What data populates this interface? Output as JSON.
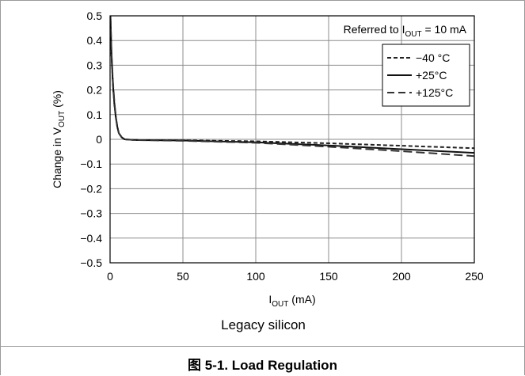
{
  "figure": {
    "subtitle": "Legacy silicon",
    "caption": "图 5-1. Load Regulation"
  },
  "chart_data": {
    "type": "line",
    "xlabel": {
      "main": "I",
      "sub": "OUT",
      "rest": " (mA)"
    },
    "ylabel": {
      "main": "Change in V",
      "sub": "OUT",
      "rest": " (%)"
    },
    "xlim": [
      0,
      250
    ],
    "ylim": [
      -0.5,
      0.5
    ],
    "xticks": [
      0,
      50,
      100,
      150,
      200,
      250
    ],
    "xtick_labels": [
      "0",
      "50",
      "100",
      "150",
      "200",
      "250"
    ],
    "yticks": [
      0.5,
      0.4,
      0.3,
      0.2,
      0.1,
      0,
      -0.1,
      -0.2,
      -0.3,
      -0.4,
      -0.5
    ],
    "ytick_labels": [
      "0.5",
      "0.4",
      "0.3",
      "0.2",
      "0.1",
      "0",
      "−0.1",
      "−0.2",
      "−0.3",
      "−0.4",
      "−0.5"
    ],
    "grid": true,
    "legend_position": "top-right",
    "annotation": {
      "prefix": "Referred to I",
      "sub": "OUT",
      "suffix": " = 10 mA"
    },
    "series": [
      {
        "name": "−40 °C",
        "style": "short-dash",
        "color": "#222222",
        "x": [
          0.3,
          1,
          2,
          3,
          4,
          5,
          6,
          8,
          10,
          15,
          20,
          50,
          100,
          150,
          200,
          250
        ],
        "y": [
          0.48,
          0.33,
          0.22,
          0.14,
          0.09,
          0.05,
          0.025,
          0.008,
          0.0,
          -0.002,
          -0.003,
          -0.004,
          -0.008,
          -0.016,
          -0.026,
          -0.036
        ]
      },
      {
        "name": "+25°C",
        "style": "solid",
        "color": "#111111",
        "x": [
          0.3,
          1,
          2,
          3,
          4,
          5,
          6,
          8,
          10,
          15,
          20,
          50,
          100,
          150,
          200,
          250
        ],
        "y": [
          0.49,
          0.34,
          0.22,
          0.14,
          0.085,
          0.05,
          0.025,
          0.008,
          0.0,
          -0.002,
          -0.003,
          -0.005,
          -0.012,
          -0.025,
          -0.04,
          -0.055
        ]
      },
      {
        "name": "+125°C",
        "style": "long-dash",
        "color": "#333333",
        "x": [
          0.3,
          1,
          2,
          3,
          4,
          5,
          6,
          8,
          10,
          15,
          20,
          50,
          100,
          150,
          200,
          250
        ],
        "y": [
          0.5,
          0.35,
          0.23,
          0.15,
          0.09,
          0.05,
          0.025,
          0.008,
          0.0,
          -0.002,
          -0.003,
          -0.006,
          -0.014,
          -0.03,
          -0.048,
          -0.068
        ]
      }
    ]
  }
}
